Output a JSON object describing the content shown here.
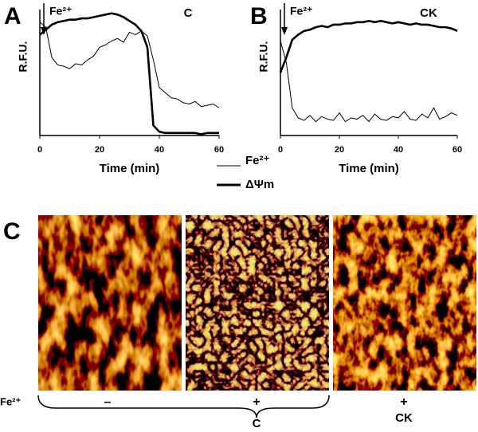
{
  "chart_data": [
    {
      "type": "line",
      "panel_label": "A",
      "annotation": "Fe²⁺",
      "condition": "C",
      "ylabel": "R.F.U.",
      "xlabel": "Time (min)",
      "x": [
        0,
        2,
        4,
        6,
        8,
        10,
        12,
        14,
        16,
        18,
        20,
        22,
        24,
        26,
        28,
        30,
        32,
        34,
        36,
        38,
        40,
        42,
        44,
        46,
        48,
        50,
        52,
        54,
        56,
        58,
        60
      ],
      "xlim": [
        0,
        60
      ],
      "xticks": [
        0,
        20,
        40,
        60
      ],
      "ylim": [
        0,
        100
      ],
      "series": [
        {
          "name": "Fe²⁺",
          "color": "#000000",
          "width": 1,
          "values": [
            90,
            86,
            62,
            56,
            55,
            53,
            57,
            56,
            60,
            63,
            70,
            72,
            75,
            77,
            74,
            82,
            80,
            83,
            79,
            60,
            38,
            34,
            30,
            29,
            26,
            25,
            27,
            23,
            24,
            25,
            22
          ]
        },
        {
          "name": "ΔΨm",
          "color": "#000000",
          "width": 2.6,
          "values": [
            80,
            84,
            88,
            90,
            91,
            92,
            92,
            93,
            93,
            94,
            95,
            96,
            97,
            96,
            94,
            91,
            88,
            83,
            70,
            8,
            3,
            2,
            2,
            2,
            2,
            2,
            2,
            1,
            2,
            2,
            2
          ]
        }
      ]
    },
    {
      "type": "line",
      "panel_label": "B",
      "annotation": "Fe²⁺",
      "condition": "CK",
      "ylabel": "R.F.U.",
      "xlabel": "Time (min)",
      "x": [
        0,
        2,
        4,
        6,
        8,
        10,
        12,
        14,
        16,
        18,
        20,
        22,
        24,
        26,
        28,
        30,
        32,
        34,
        36,
        38,
        40,
        42,
        44,
        46,
        48,
        50,
        52,
        54,
        56,
        58,
        60
      ],
      "xlim": [
        0,
        60
      ],
      "xticks": [
        0,
        20,
        40,
        60
      ],
      "ylim": [
        0,
        100
      ],
      "series": [
        {
          "color": "#000000",
          "width": 1,
          "values": [
            75,
            58,
            22,
            14,
            12,
            16,
            11,
            15,
            13,
            12,
            18,
            11,
            14,
            13,
            16,
            11,
            17,
            13,
            12,
            15,
            14,
            19,
            13,
            12,
            17,
            14,
            22,
            13,
            15,
            18,
            16
          ]
        },
        {
          "color": "#000000",
          "width": 2.6,
          "values": [
            50,
            62,
            76,
            80,
            83,
            84,
            86,
            87,
            86,
            88,
            88,
            89,
            89,
            90,
            90,
            91,
            90,
            91,
            90,
            89,
            90,
            89,
            88,
            89,
            88,
            88,
            87,
            86,
            86,
            85,
            83
          ]
        }
      ]
    }
  ],
  "panel_c": {
    "panel_label": "C",
    "condition_label": "Fe²⁺",
    "signs": [
      "–",
      "+",
      "+"
    ],
    "groups": [
      "C",
      "CK"
    ]
  }
}
